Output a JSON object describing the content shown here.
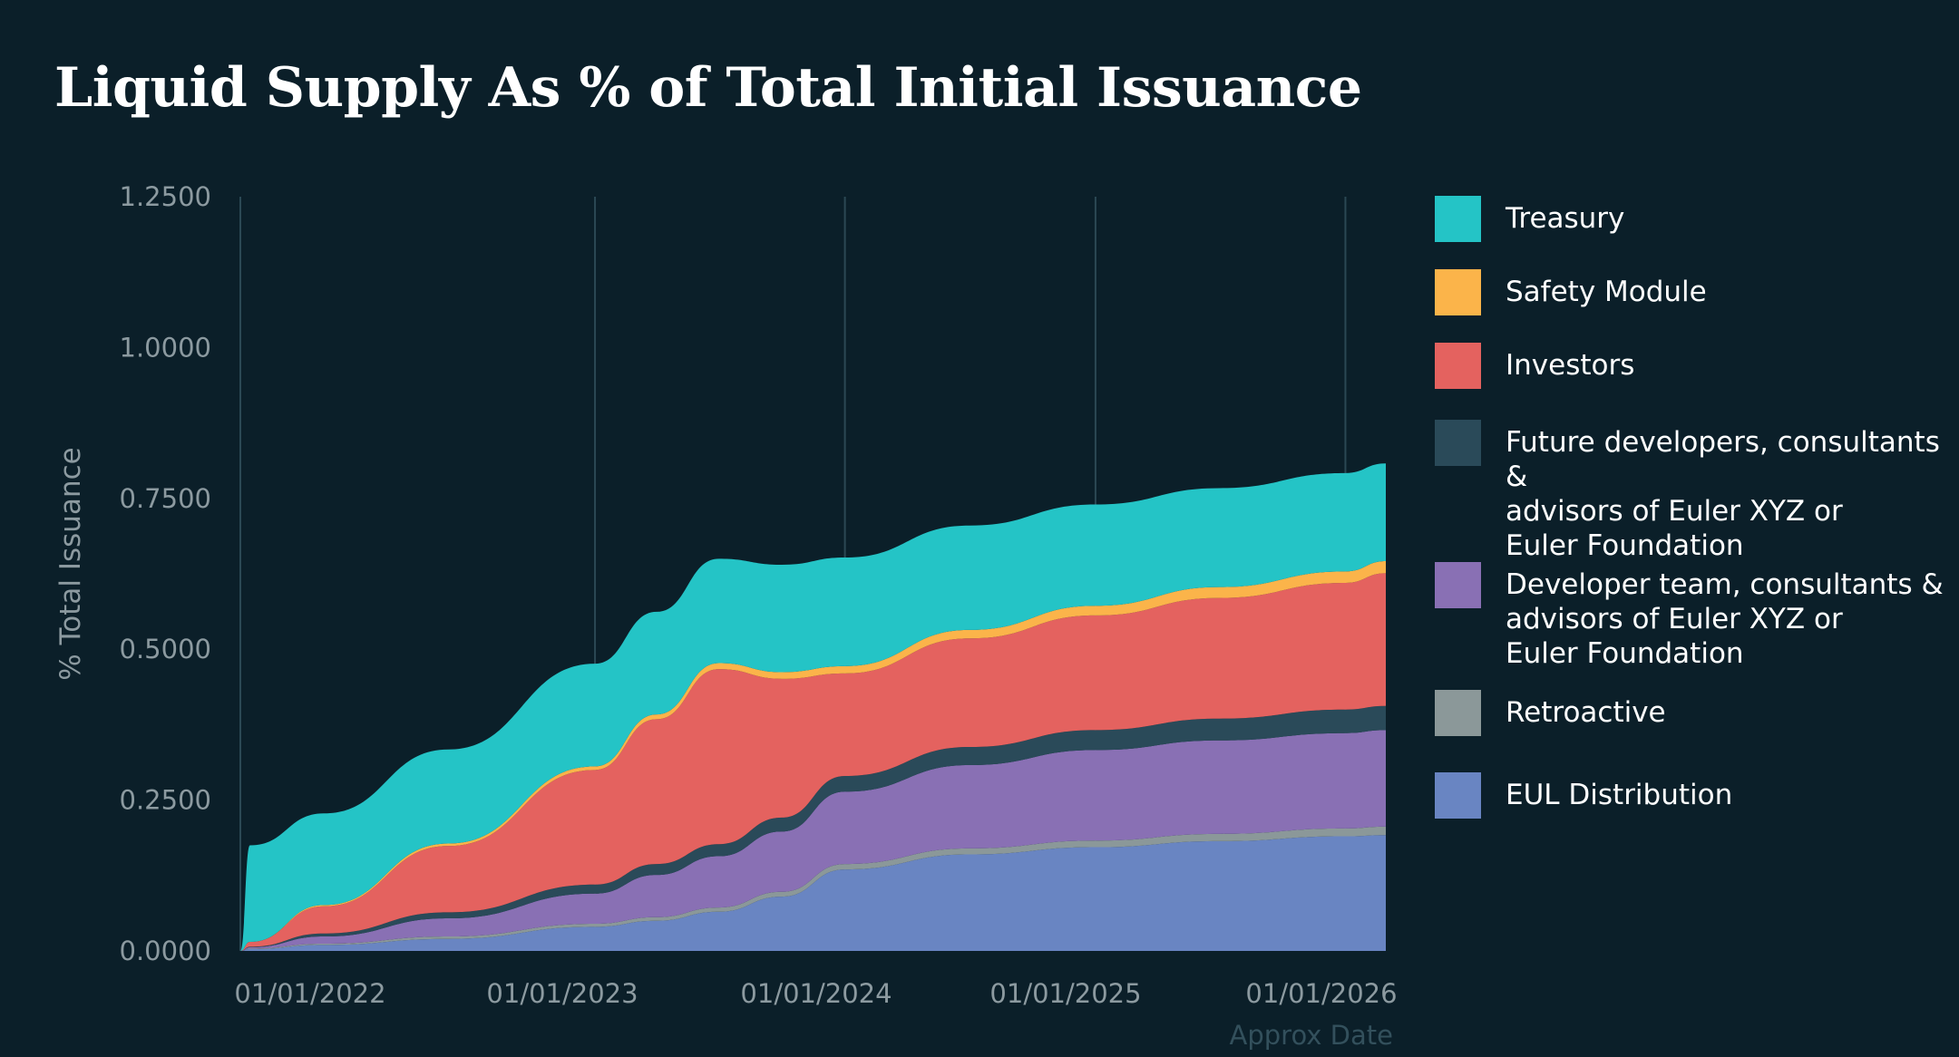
{
  "title": "Liquid Supply As % of Total Initial Issuance",
  "legend": {
    "items": [
      {
        "label": "Treasury",
        "color": "#24c4c6"
      },
      {
        "label": "Safety Module",
        "color": "#fbb44a"
      },
      {
        "label": "Investors",
        "color": "#e4625f"
      },
      {
        "label": "Future developers, consultants &\nadvisors of Euler XYZ or\nEuler Foundation",
        "color": "#2a4a59"
      },
      {
        "label": "Developer team, consultants &\nadvisors of Euler XYZ or\nEuler Foundation",
        "color": "#8970b4"
      },
      {
        "label": "Retroactive",
        "color": "#8b9899"
      },
      {
        "label": "EUL Distribution",
        "color": "#6985c2"
      }
    ]
  },
  "chart_data": {
    "type": "area",
    "stacked": true,
    "title": "Liquid Supply As % of Total Initial Issuance",
    "xlabel": "Approx Date",
    "ylabel": "% Total Issuance",
    "ylim": [
      0,
      1.25
    ],
    "yticks": [
      "0.0000",
      "0.2500",
      "0.5000",
      "0.7500",
      "1.0000",
      "1.2500"
    ],
    "xticks": [
      "01/01/2022",
      "01/01/2023",
      "01/01/2024",
      "01/01/2025",
      "01/01/2026"
    ],
    "vertical_gridlines": true,
    "legend_position": "right",
    "x": [
      "2021-08-01",
      "2021-08-15",
      "2021-12-01",
      "2022-06-01",
      "2023-01-01",
      "2023-04-01",
      "2023-07-01",
      "2023-10-01",
      "2024-01-01",
      "2024-07-01",
      "2025-01-01",
      "2025-07-01",
      "2026-01-01",
      "2026-03-01"
    ],
    "series": [
      {
        "name": "EUL Distribution",
        "color": "#6985c2",
        "values": [
          0,
          0.003,
          0.01,
          0.02,
          0.04,
          0.05,
          0.065,
          0.09,
          0.135,
          0.16,
          0.172,
          0.182,
          0.19,
          0.192
        ]
      },
      {
        "name": "Retroactive",
        "color": "#8b9899",
        "values": [
          0,
          0.001,
          0.002,
          0.004,
          0.005,
          0.006,
          0.007,
          0.008,
          0.009,
          0.01,
          0.011,
          0.012,
          0.013,
          0.014
        ]
      },
      {
        "name": "Developer team, consultants & advisors of Euler XYZ or Euler Foundation",
        "color": "#8970b4",
        "values": [
          0,
          0.002,
          0.012,
          0.03,
          0.05,
          0.07,
          0.085,
          0.1,
          0.12,
          0.138,
          0.15,
          0.155,
          0.158,
          0.16
        ]
      },
      {
        "name": "Future developers, consultants & advisors of Euler XYZ or Euler Foundation",
        "color": "#2a4a59",
        "values": [
          0,
          0.001,
          0.005,
          0.01,
          0.015,
          0.018,
          0.02,
          0.023,
          0.026,
          0.03,
          0.033,
          0.036,
          0.039,
          0.04
        ]
      },
      {
        "name": "Investors",
        "color": "#e4625f",
        "values": [
          0,
          0.008,
          0.045,
          0.11,
          0.19,
          0.24,
          0.29,
          0.23,
          0.17,
          0.18,
          0.19,
          0.2,
          0.21,
          0.22
        ]
      },
      {
        "name": "Safety Module",
        "color": "#fbb44a",
        "values": [
          0,
          0,
          0.002,
          0.004,
          0.006,
          0.008,
          0.01,
          0.011,
          0.012,
          0.014,
          0.016,
          0.018,
          0.019,
          0.02
        ]
      },
      {
        "name": "Treasury",
        "color": "#24c4c6",
        "values": [
          0,
          0.16,
          0.152,
          0.156,
          0.17,
          0.17,
          0.173,
          0.178,
          0.18,
          0.173,
          0.168,
          0.164,
          0.163,
          0.162
        ]
      }
    ]
  }
}
